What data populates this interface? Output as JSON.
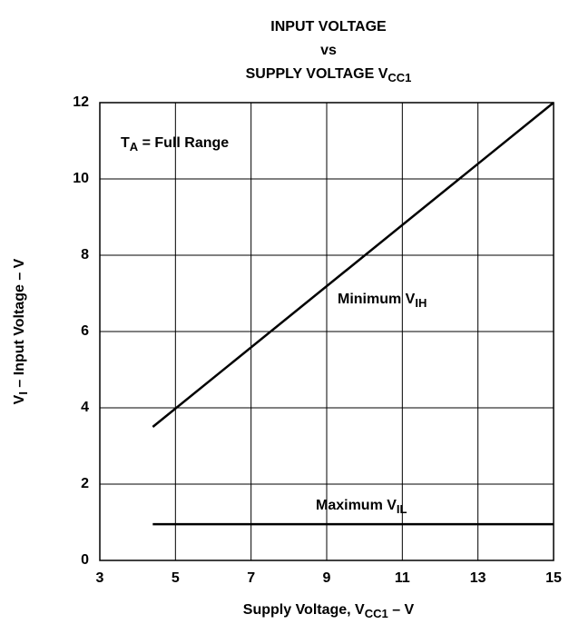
{
  "chart_data": {
    "type": "line",
    "title": [
      [
        "INPUT VOLTAGE"
      ],
      [
        "vs"
      ],
      [
        "SUPPLY VOLTAGE V",
        "CC1"
      ]
    ],
    "x_label": [
      "Supply Voltage, V",
      "CC1",
      " – V"
    ],
    "y_label": [
      "V",
      "I",
      " – Input Voltage – V"
    ],
    "annotation": [
      "T",
      "A",
      " = Full Range"
    ],
    "x": [
      4.4,
      15
    ],
    "series": [
      {
        "name": [
          "Minimum V",
          "IH"
        ],
        "color": "#000000",
        "values": [
          3.5,
          12
        ]
      },
      {
        "name": [
          "Maximum V",
          "IL"
        ],
        "color": "#000000",
        "values": [
          0.95,
          0.95
        ]
      }
    ],
    "xlim": [
      3,
      15
    ],
    "xticks": [
      3,
      5,
      7,
      9,
      11,
      13,
      15
    ],
    "ylim": [
      0,
      12
    ],
    "yticks": [
      0,
      2,
      4,
      6,
      8,
      10,
      12
    ],
    "grid": true
  }
}
